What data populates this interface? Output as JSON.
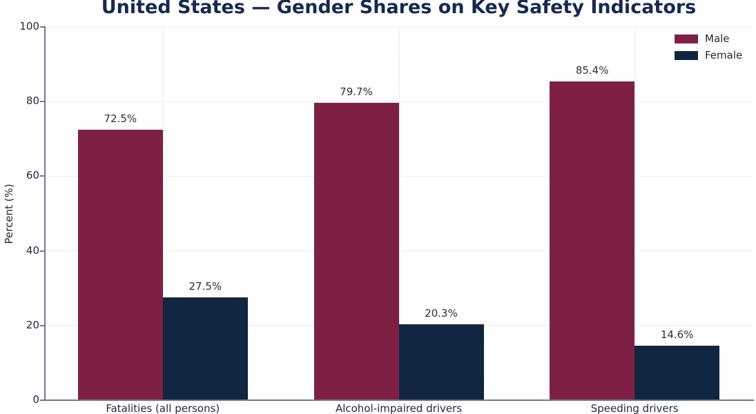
{
  "title": "United States — Gender Shares on Key Safety Indicators",
  "chart_data": {
    "type": "bar",
    "title": "United States — Gender Shares on Key Safety Indicators",
    "categories": [
      "Fatalities (all persons)",
      "Alcohol-impaired drivers",
      "Speeding drivers"
    ],
    "series": [
      {
        "name": "Male",
        "color": "#7E2044",
        "values": [
          72.5,
          79.7,
          85.4
        ]
      },
      {
        "name": "Female",
        "color": "#112640",
        "values": [
          27.5,
          20.3,
          14.6
        ]
      }
    ],
    "value_labels": [
      [
        "72.5%",
        "79.7%",
        "85.4%"
      ],
      [
        "27.5%",
        "20.3%",
        "14.6%"
      ]
    ],
    "xlabel": "",
    "ylabel": "Percent (%)",
    "ylim": [
      0,
      100
    ],
    "yticks": [
      0,
      20,
      40,
      60,
      80,
      100
    ],
    "grid": {
      "horizontal": true,
      "vertical_at_category_centers": true
    },
    "legend_position": "upper right"
  },
  "colors": {
    "title": "#16294e",
    "male_bar": "#7E2044",
    "female_bar": "#112640",
    "spine": "#6e7895",
    "grid_horizontal": "#ededf3",
    "grid_vertical": "#d8d8e2",
    "text": "#212836"
  }
}
